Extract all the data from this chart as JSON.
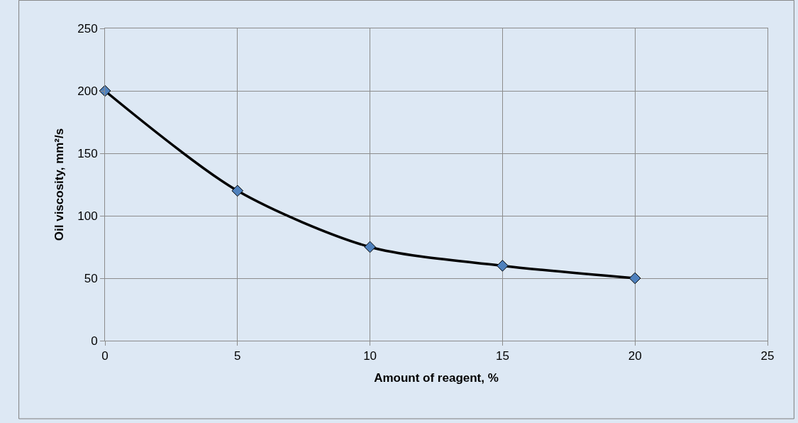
{
  "chart_data": {
    "type": "line",
    "xlabel": "Amount of reagent, %",
    "ylabel": "Oil viscosity, mm²/s",
    "x": [
      0,
      5,
      10,
      15,
      20
    ],
    "series": [
      {
        "color": "#000000",
        "colors": [
          "#4f81bd",
          "#4f81bd",
          "#4f81bd",
          "#4f81bd",
          "#4f81bd"
        ],
        "values": [
          200,
          120,
          75,
          60,
          50
        ]
      }
    ],
    "marker": "diamond",
    "line_style": "solid",
    "xlim": [
      0,
      25
    ],
    "xticks": [
      0,
      5,
      10,
      15,
      20,
      25
    ],
    "ylim": [
      0,
      250
    ],
    "yticks": [
      0,
      50,
      100,
      150,
      200,
      250
    ],
    "grid": true,
    "legend": false
  }
}
